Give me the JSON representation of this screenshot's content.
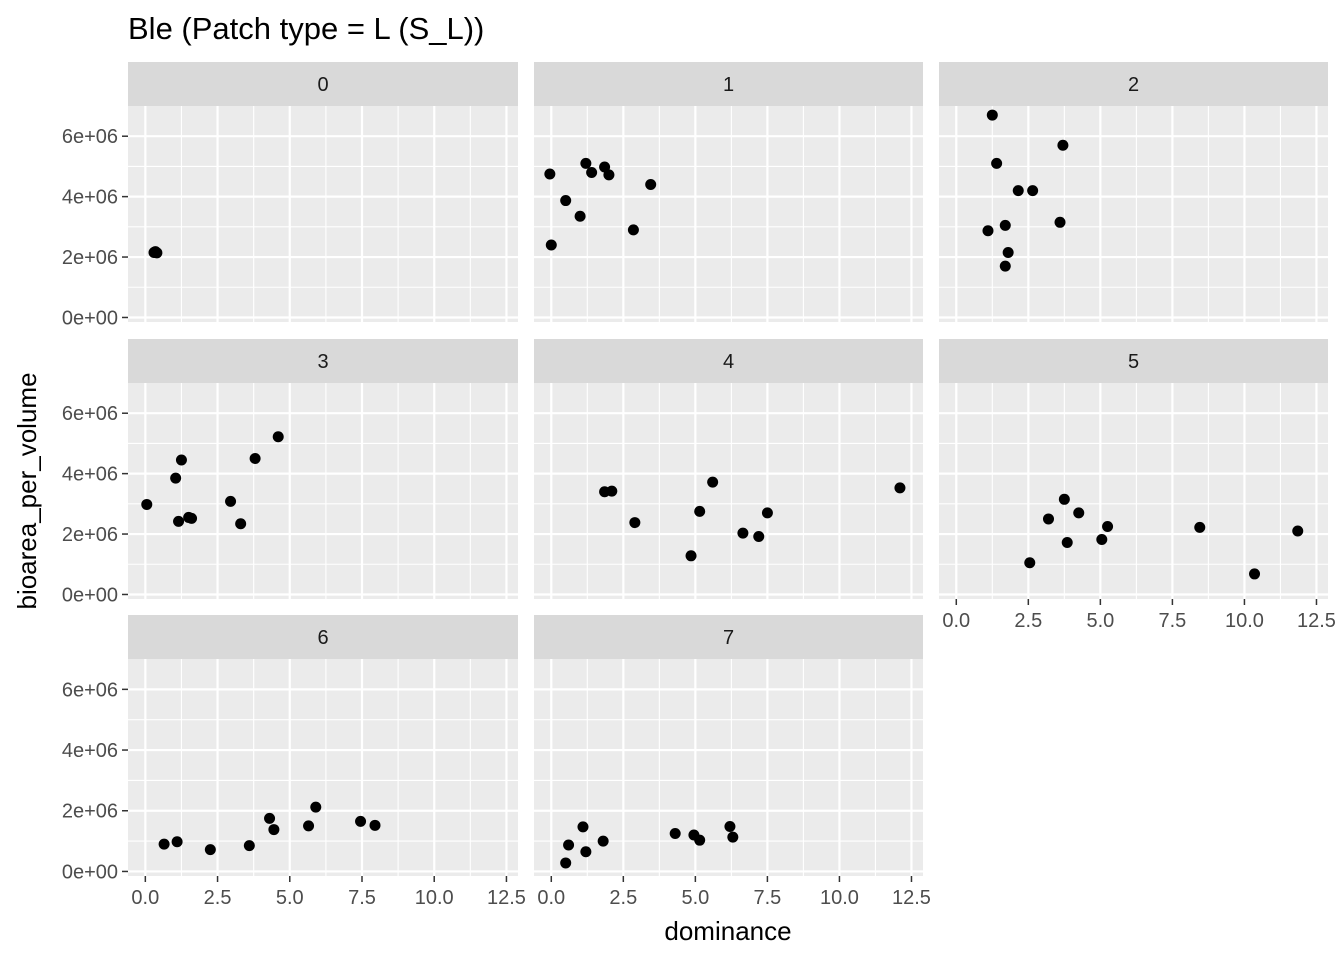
{
  "chart_data": {
    "type": "scatter",
    "title": "Ble (Patch type = L (S_L))",
    "xlabel": "dominance",
    "ylabel": "bioarea_per_volume",
    "xlim": [
      -0.6,
      12.9
    ],
    "ylim": [
      -150000.0,
      7000000.0
    ],
    "x_ticks": [
      0,
      2.5,
      5,
      7.5,
      10,
      12.5
    ],
    "x_tick_labels": [
      "0.0",
      "2.5",
      "5.0",
      "7.5",
      "10.0",
      "12.5"
    ],
    "y_ticks": [
      0,
      2000000,
      4000000,
      6000000
    ],
    "y_tick_labels": [
      "0e+00",
      "2e+06",
      "4e+06",
      "6e+06"
    ],
    "grid": true,
    "legend": "none",
    "colors": {
      "panel_bg": "#EBEBEB",
      "strip_bg": "#D9D9D9",
      "grid": "#FFFFFF",
      "point": "#000000"
    },
    "facets": [
      {
        "label": "0",
        "points": [
          [
            0.3,
            2150000
          ],
          [
            0.35,
            2180000
          ],
          [
            0.4,
            2140000
          ],
          [
            0.32,
            2160000
          ]
        ]
      },
      {
        "label": "1",
        "points": [
          [
            -0.05,
            4750000
          ],
          [
            0.0,
            2400000
          ],
          [
            0.5,
            3870000
          ],
          [
            1.0,
            3350000
          ],
          [
            1.2,
            5100000
          ],
          [
            1.4,
            4800000
          ],
          [
            1.85,
            4980000
          ],
          [
            2.0,
            4720000
          ],
          [
            2.85,
            2900000
          ],
          [
            3.45,
            4400000
          ]
        ]
      },
      {
        "label": "2",
        "points": [
          [
            1.1,
            2870000
          ],
          [
            1.25,
            6700000
          ],
          [
            1.4,
            5100000
          ],
          [
            1.7,
            1700000
          ],
          [
            1.7,
            3050000
          ],
          [
            1.8,
            2150000
          ],
          [
            2.15,
            4200000
          ],
          [
            2.65,
            4200000
          ],
          [
            3.6,
            3150000
          ],
          [
            3.7,
            5700000
          ]
        ]
      },
      {
        "label": "3",
        "points": [
          [
            0.05,
            2980000
          ],
          [
            1.05,
            3850000
          ],
          [
            1.15,
            2420000
          ],
          [
            1.25,
            4450000
          ],
          [
            1.5,
            2550000
          ],
          [
            1.6,
            2520000
          ],
          [
            2.95,
            3080000
          ],
          [
            3.3,
            2340000
          ],
          [
            3.8,
            4500000
          ],
          [
            4.6,
            5220000
          ]
        ]
      },
      {
        "label": "4",
        "points": [
          [
            1.85,
            3400000
          ],
          [
            2.1,
            3420000
          ],
          [
            2.9,
            2380000
          ],
          [
            4.85,
            1280000
          ],
          [
            5.15,
            2750000
          ],
          [
            5.6,
            3720000
          ],
          [
            6.65,
            2030000
          ],
          [
            7.2,
            1920000
          ],
          [
            7.5,
            2700000
          ],
          [
            12.1,
            3530000
          ]
        ]
      },
      {
        "label": "5",
        "points": [
          [
            2.55,
            1050000
          ],
          [
            3.2,
            2500000
          ],
          [
            3.75,
            3150000
          ],
          [
            3.85,
            1720000
          ],
          [
            4.25,
            2700000
          ],
          [
            5.05,
            1820000
          ],
          [
            5.25,
            2250000
          ],
          [
            8.45,
            2220000
          ],
          [
            10.35,
            680000
          ],
          [
            11.85,
            2100000
          ]
        ]
      },
      {
        "label": "6",
        "points": [
          [
            0.65,
            900000
          ],
          [
            1.1,
            980000
          ],
          [
            2.25,
            720000
          ],
          [
            3.6,
            850000
          ],
          [
            4.3,
            1750000
          ],
          [
            4.45,
            1380000
          ],
          [
            5.65,
            1500000
          ],
          [
            5.9,
            2120000
          ],
          [
            7.45,
            1650000
          ],
          [
            7.95,
            1520000
          ]
        ]
      },
      {
        "label": "7",
        "points": [
          [
            0.5,
            280000
          ],
          [
            0.6,
            870000
          ],
          [
            1.1,
            1470000
          ],
          [
            1.2,
            650000
          ],
          [
            1.8,
            1000000
          ],
          [
            4.3,
            1250000
          ],
          [
            4.95,
            1200000
          ],
          [
            5.15,
            1030000
          ],
          [
            6.2,
            1480000
          ],
          [
            6.3,
            1130000
          ]
        ]
      }
    ]
  }
}
